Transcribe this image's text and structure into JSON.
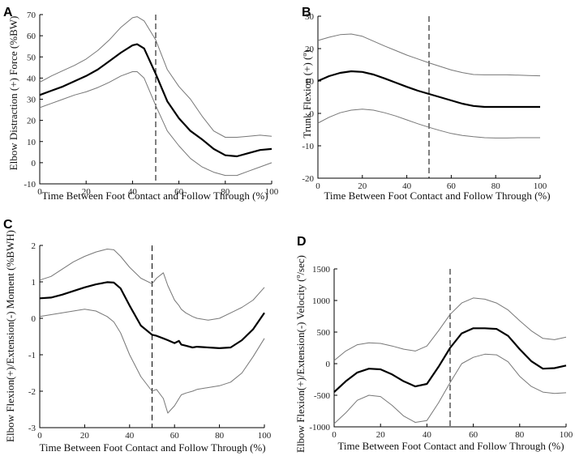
{
  "chart_data": [
    {
      "panel": "A",
      "type": "line",
      "xlabel": "Time Between Foot Contact and Follow Through (%)",
      "ylabel": "Elbow Distraction (+) Force (%BW)",
      "xlim": [
        0,
        100
      ],
      "ylim": [
        -10,
        70
      ],
      "xticks": [
        0,
        20,
        40,
        60,
        80,
        100
      ],
      "yticks": [
        -10,
        0,
        10,
        20,
        30,
        40,
        50,
        60,
        70
      ],
      "ref_x": 50,
      "x": [
        0,
        5,
        10,
        15,
        20,
        25,
        30,
        35,
        40,
        42,
        45,
        50,
        55,
        60,
        65,
        70,
        75,
        80,
        85,
        90,
        95,
        100
      ],
      "series": [
        {
          "name": "mean",
          "values": [
            32,
            34,
            36,
            38.5,
            41,
            44,
            48,
            52,
            55.5,
            56,
            54,
            42,
            29,
            21,
            15,
            11,
            6.5,
            3.5,
            3,
            4.5,
            6,
            6.5
          ]
        },
        {
          "name": "upper",
          "values": [
            38,
            41,
            43.5,
            46,
            49,
            53,
            58,
            64,
            68.5,
            69,
            67,
            58,
            44,
            36,
            30,
            22,
            15,
            12,
            12,
            12.5,
            13,
            12.5
          ]
        },
        {
          "name": "lower",
          "values": [
            26,
            28,
            30,
            32,
            33.5,
            35.5,
            38,
            41,
            43,
            43,
            40,
            27,
            15,
            8,
            2,
            -2,
            -4.5,
            -6,
            -6,
            -4,
            -2,
            0
          ]
        }
      ]
    },
    {
      "panel": "B",
      "type": "line",
      "xlabel": "Time Between Foot Contact and Follow Through (%)",
      "ylabel": "Trunk Flexion (+) (º)",
      "xlim": [
        0,
        100
      ],
      "ylim": [
        -20,
        30
      ],
      "xticks": [
        0,
        20,
        40,
        60,
        80,
        100
      ],
      "yticks": [
        -20,
        -10,
        0,
        10,
        20,
        30
      ],
      "ref_x": 50,
      "x": [
        0,
        5,
        10,
        15,
        20,
        25,
        30,
        35,
        40,
        45,
        50,
        55,
        60,
        65,
        70,
        75,
        80,
        85,
        90,
        95,
        100
      ],
      "series": [
        {
          "name": "mean",
          "values": [
            10,
            11.5,
            12.5,
            13,
            12.8,
            12,
            10.8,
            9.5,
            8.2,
            7,
            6,
            5,
            4,
            3,
            2.3,
            2,
            2,
            2,
            2,
            2,
            2
          ]
        },
        {
          "name": "upper",
          "values": [
            22.5,
            23.5,
            24.3,
            24.5,
            23.8,
            22.3,
            20.8,
            19.4,
            18,
            16.8,
            15.6,
            14.5,
            13.4,
            12.6,
            12,
            11.9,
            11.9,
            11.9,
            11.8,
            11.7,
            11.6
          ]
        },
        {
          "name": "lower",
          "values": [
            -3,
            -1.2,
            0.2,
            1,
            1.3,
            1,
            0.2,
            -0.8,
            -2,
            -3.2,
            -4.3,
            -5.3,
            -6.2,
            -6.8,
            -7.2,
            -7.5,
            -7.6,
            -7.6,
            -7.5,
            -7.5,
            -7.5
          ]
        }
      ]
    },
    {
      "panel": "C",
      "type": "line",
      "xlabel": "Time Between Foot Contact and Follow Through (%)",
      "ylabel": "Elbow Flexion(+)/Extension(-) Moment (%BWH)",
      "xlim": [
        0,
        100
      ],
      "ylim": [
        -3,
        2
      ],
      "xticks": [
        0,
        20,
        40,
        60,
        80,
        100
      ],
      "yticks": [
        -3,
        -2,
        -1,
        0,
        1,
        2
      ],
      "ref_x": 50,
      "x": [
        0,
        5,
        10,
        15,
        20,
        25,
        30,
        33,
        36,
        40,
        45,
        50,
        52,
        55,
        57,
        60,
        62,
        63,
        65,
        68,
        70,
        75,
        80,
        85,
        90,
        95,
        100
      ],
      "series": [
        {
          "name": "mean",
          "values": [
            0.55,
            0.57,
            0.65,
            0.75,
            0.85,
            0.93,
            0.99,
            0.98,
            0.82,
            0.35,
            -0.2,
            -0.45,
            -0.48,
            -0.55,
            -0.6,
            -0.68,
            -0.62,
            -0.72,
            -0.75,
            -0.8,
            -0.78,
            -0.8,
            -0.82,
            -0.8,
            -0.6,
            -0.3,
            0.15
          ]
        },
        {
          "name": "upper",
          "values": [
            1.05,
            1.15,
            1.35,
            1.55,
            1.7,
            1.82,
            1.9,
            1.88,
            1.7,
            1.4,
            1.1,
            0.95,
            1.1,
            1.25,
            0.9,
            0.5,
            0.35,
            0.25,
            0.15,
            0.05,
            0.0,
            -0.05,
            0.0,
            0.15,
            0.3,
            0.5,
            0.85
          ]
        },
        {
          "name": "lower",
          "values": [
            0.05,
            0.1,
            0.15,
            0.2,
            0.25,
            0.2,
            0.05,
            -0.1,
            -0.4,
            -1.0,
            -1.6,
            -2.0,
            -1.95,
            -2.2,
            -2.6,
            -2.4,
            -2.2,
            -2.1,
            -2.05,
            -2.0,
            -1.95,
            -1.9,
            -1.85,
            -1.75,
            -1.5,
            -1.05,
            -0.55
          ]
        }
      ]
    },
    {
      "panel": "D",
      "type": "line",
      "xlabel": "Time Between Foot Contact and Follow Through (%)",
      "ylabel": "Elbow Flexion(+)/Extension(-) Velocity (º/sec)",
      "xlim": [
        0,
        100
      ],
      "ylim": [
        -1000,
        1500
      ],
      "xticks": [
        0,
        20,
        40,
        60,
        80,
        100
      ],
      "yticks": [
        -1000,
        -500,
        0,
        500,
        1000,
        1500
      ],
      "ref_x": 50,
      "x": [
        0,
        5,
        10,
        15,
        20,
        25,
        30,
        35,
        40,
        45,
        50,
        55,
        60,
        65,
        70,
        75,
        80,
        85,
        90,
        95,
        100
      ],
      "series": [
        {
          "name": "mean",
          "values": [
            -450,
            -280,
            -140,
            -80,
            -90,
            -170,
            -280,
            -360,
            -320,
            -50,
            250,
            480,
            560,
            560,
            550,
            440,
            230,
            40,
            -80,
            -70,
            -30
          ]
        },
        {
          "name": "upper",
          "values": [
            50,
            200,
            300,
            330,
            320,
            280,
            230,
            200,
            280,
            520,
            780,
            960,
            1040,
            1020,
            960,
            850,
            680,
            520,
            400,
            380,
            420
          ]
        },
        {
          "name": "lower",
          "values": [
            -950,
            -780,
            -580,
            -500,
            -520,
            -660,
            -830,
            -930,
            -900,
            -620,
            -300,
            0,
            100,
            150,
            140,
            30,
            -200,
            -360,
            -450,
            -470,
            -460
          ]
        }
      ]
    }
  ]
}
